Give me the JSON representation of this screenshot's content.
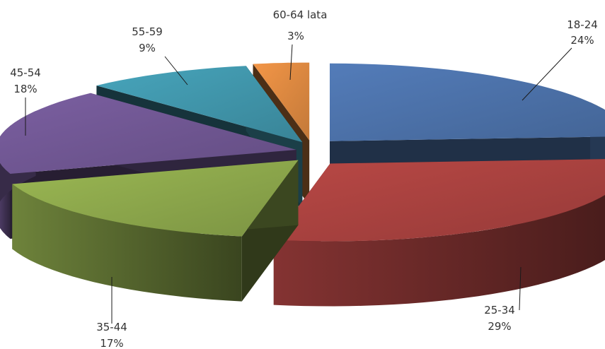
{
  "chart_data": {
    "type": "pie",
    "style": "3d-exploded",
    "categories": [
      "18-24",
      "25-34",
      "35-44",
      "45-54",
      "55-59",
      "60-64 lata"
    ],
    "values": [
      24,
      29,
      17,
      18,
      9,
      3
    ],
    "unit": "%",
    "value_labels": [
      "24%",
      "29%",
      "17%",
      "18%",
      "9%",
      "3%"
    ],
    "colors": [
      "#4a6fa5",
      "#a5403e",
      "#8aa44a",
      "#6e5590",
      "#3f93a8",
      "#d9863f"
    ],
    "legend": "none"
  }
}
